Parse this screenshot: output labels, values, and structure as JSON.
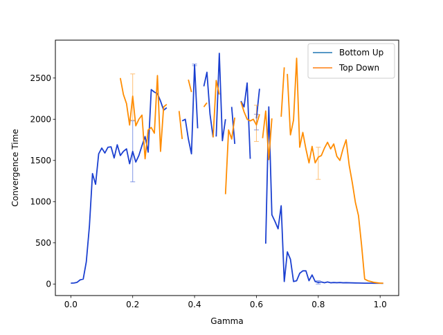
{
  "chart_data": {
    "type": "line",
    "title": "",
    "xlabel": "Gamma",
    "ylabel": "Convergence Time",
    "xlim": [
      -0.05,
      1.06
    ],
    "ylim": [
      -140,
      2960
    ],
    "x_ticks": [
      0.0,
      0.2,
      0.4,
      0.6,
      0.8,
      1.0
    ],
    "x_tick_labels": [
      "0.0",
      "0.2",
      "0.4",
      "0.6",
      "0.8",
      "1.0"
    ],
    "y_ticks": [
      0,
      500,
      1000,
      1500,
      2000,
      2500
    ],
    "y_tick_labels": [
      "0",
      "500",
      "1000",
      "1500",
      "2000",
      "2500"
    ],
    "grid": false,
    "legend_position": "top-right",
    "series": [
      {
        "name": "Bottom Up",
        "legend_color": "#1f77b4",
        "line_color": "#1a3fd0",
        "segments": [
          [
            [
              0.0,
              10
            ],
            [
              0.01,
              12
            ],
            [
              0.02,
              20
            ],
            [
              0.03,
              50
            ],
            [
              0.04,
              60
            ],
            [
              0.05,
              270
            ],
            [
              0.06,
              700
            ],
            [
              0.07,
              1340
            ],
            [
              0.08,
              1210
            ],
            [
              0.09,
              1580
            ],
            [
              0.1,
              1650
            ],
            [
              0.11,
              1590
            ],
            [
              0.12,
              1660
            ],
            [
              0.13,
              1665
            ],
            [
              0.14,
              1530
            ],
            [
              0.15,
              1690
            ],
            [
              0.16,
              1560
            ],
            [
              0.17,
              1610
            ],
            [
              0.18,
              1640
            ],
            [
              0.19,
              1460
            ],
            [
              0.2,
              1610
            ],
            [
              0.21,
              1480
            ],
            [
              0.22,
              1560
            ],
            [
              0.23,
              1680
            ],
            [
              0.24,
              1790
            ],
            [
              0.25,
              1600
            ],
            [
              0.26,
              2360
            ],
            [
              0.27,
              2330
            ],
            [
              0.28,
              2310
            ],
            [
              0.29,
              2220
            ],
            [
              0.3,
              2110
            ],
            [
              0.31,
              2140
            ]
          ],
          [
            [
              0.36,
              1980
            ],
            [
              0.37,
              2000
            ],
            [
              0.38,
              1760
            ],
            [
              0.39,
              1580
            ],
            [
              0.4,
              2660
            ],
            [
              0.41,
              1890
            ]
          ],
          [
            [
              0.43,
              2400
            ],
            [
              0.44,
              2570
            ],
            [
              0.45,
              2060
            ],
            [
              0.46,
              1780
            ]
          ],
          [
            [
              0.47,
              1790
            ],
            [
              0.48,
              2800
            ],
            [
              0.49,
              1740
            ],
            [
              0.5,
              2000
            ]
          ],
          [
            [
              0.52,
              2150
            ],
            [
              0.53,
              1700
            ]
          ],
          [
            [
              0.55,
              2220
            ],
            [
              0.56,
              2150
            ],
            [
              0.57,
              2440
            ],
            [
              0.58,
              1520
            ]
          ],
          [
            [
              0.6,
              2010
            ],
            [
              0.61,
              2370
            ]
          ],
          [
            [
              0.63,
              490
            ],
            [
              0.64,
              2150
            ],
            [
              0.65,
              840
            ],
            [
              0.66,
              760
            ],
            [
              0.67,
              670
            ],
            [
              0.68,
              950
            ],
            [
              0.69,
              30
            ],
            [
              0.7,
              390
            ],
            [
              0.71,
              300
            ],
            [
              0.72,
              30
            ],
            [
              0.73,
              40
            ],
            [
              0.74,
              130
            ],
            [
              0.75,
              160
            ],
            [
              0.76,
              160
            ],
            [
              0.77,
              40
            ],
            [
              0.78,
              110
            ],
            [
              0.79,
              30
            ],
            [
              0.8,
              20
            ],
            [
              0.81,
              25
            ],
            [
              0.82,
              15
            ],
            [
              0.83,
              25
            ],
            [
              0.84,
              15
            ],
            [
              0.85,
              18
            ],
            [
              0.86,
              16
            ],
            [
              0.87,
              18
            ],
            [
              0.88,
              15
            ],
            [
              0.89,
              16
            ],
            [
              0.9,
              15
            ],
            [
              0.91,
              14
            ],
            [
              0.92,
              13
            ],
            [
              0.93,
              12
            ],
            [
              0.94,
              11
            ],
            [
              0.95,
              10
            ],
            [
              0.96,
              10
            ],
            [
              0.97,
              10
            ],
            [
              0.98,
              9
            ],
            [
              0.99,
              9
            ],
            [
              1.0,
              9
            ],
            [
              1.01,
              8
            ]
          ]
        ],
        "error_bars": [
          {
            "x": 0.2,
            "y": 1610,
            "low": 1240,
            "high": 1980
          },
          {
            "x": 0.4,
            "y": 2660,
            "low": 2650,
            "high": 2670
          },
          {
            "x": 0.6,
            "y": 2010,
            "low": 1870,
            "high": 2060
          },
          {
            "x": 0.8,
            "y": 20,
            "low": 0,
            "high": 40
          }
        ]
      },
      {
        "name": "Top Down",
        "legend_color": "#ff7f0e",
        "line_color": "#ff8c00",
        "segments": [
          [
            [
              0.16,
              2500
            ],
            [
              0.17,
              2300
            ],
            [
              0.18,
              2190
            ],
            [
              0.19,
              1930
            ],
            [
              0.2,
              2280
            ],
            [
              0.21,
              1920
            ],
            [
              0.22,
              2000
            ],
            [
              0.23,
              2050
            ],
            [
              0.24,
              1520
            ],
            [
              0.25,
              1870
            ],
            [
              0.26,
              1900
            ],
            [
              0.27,
              1830
            ],
            [
              0.28,
              2530
            ],
            [
              0.29,
              1610
            ],
            [
              0.3,
              2150
            ],
            [
              0.31,
              2180
            ]
          ],
          [
            [
              0.35,
              2100
            ],
            [
              0.36,
              1760
            ]
          ],
          [
            [
              0.38,
              2480
            ],
            [
              0.39,
              2330
            ]
          ],
          [
            [
              0.43,
              2150
            ],
            [
              0.44,
              2200
            ]
          ],
          [
            [
              0.46,
              1780
            ],
            [
              0.47,
              2470
            ],
            [
              0.48,
              2300
            ]
          ],
          [
            [
              0.5,
              1090
            ],
            [
              0.51,
              1870
            ],
            [
              0.52,
              1760
            ],
            [
              0.53,
              2020
            ]
          ],
          [
            [
              0.55,
              2210
            ],
            [
              0.56,
              2090
            ],
            [
              0.57,
              2000
            ],
            [
              0.58,
              1980
            ],
            [
              0.59,
              2000
            ],
            [
              0.6,
              1930
            ],
            [
              0.61,
              2060
            ]
          ],
          [
            [
              0.62,
              1770
            ],
            [
              0.63,
              2100
            ],
            [
              0.64,
              1510
            ],
            [
              0.65,
              2010
            ]
          ],
          [
            [
              0.68,
              2030
            ],
            [
              0.69,
              2630
            ]
          ],
          [
            [
              0.7,
              2550
            ],
            [
              0.71,
              1810
            ],
            [
              0.72,
              1990
            ],
            [
              0.73,
              2740
            ],
            [
              0.74,
              1660
            ],
            [
              0.75,
              1840
            ],
            [
              0.76,
              1640
            ],
            [
              0.77,
              1470
            ],
            [
              0.78,
              1670
            ],
            [
              0.79,
              1470
            ],
            [
              0.8,
              1540
            ],
            [
              0.81,
              1560
            ],
            [
              0.82,
              1650
            ],
            [
              0.83,
              1720
            ],
            [
              0.84,
              1640
            ],
            [
              0.85,
              1700
            ],
            [
              0.86,
              1550
            ],
            [
              0.87,
              1500
            ],
            [
              0.88,
              1640
            ],
            [
              0.89,
              1750
            ],
            [
              0.9,
              1440
            ],
            [
              0.91,
              1230
            ],
            [
              0.92,
              990
            ],
            [
              0.93,
              830
            ],
            [
              0.94,
              470
            ],
            [
              0.95,
              60
            ],
            [
              0.96,
              40
            ],
            [
              0.97,
              30
            ],
            [
              0.98,
              20
            ],
            [
              0.99,
              15
            ],
            [
              1.0,
              10
            ],
            [
              1.01,
              10
            ]
          ]
        ],
        "error_bars": [
          {
            "x": 0.2,
            "y": 2280,
            "low": 1990,
            "high": 2550
          },
          {
            "x": 0.6,
            "y": 1930,
            "low": 1730,
            "high": 2170
          },
          {
            "x": 0.8,
            "y": 1540,
            "low": 1270,
            "high": 1660
          }
        ]
      }
    ]
  }
}
